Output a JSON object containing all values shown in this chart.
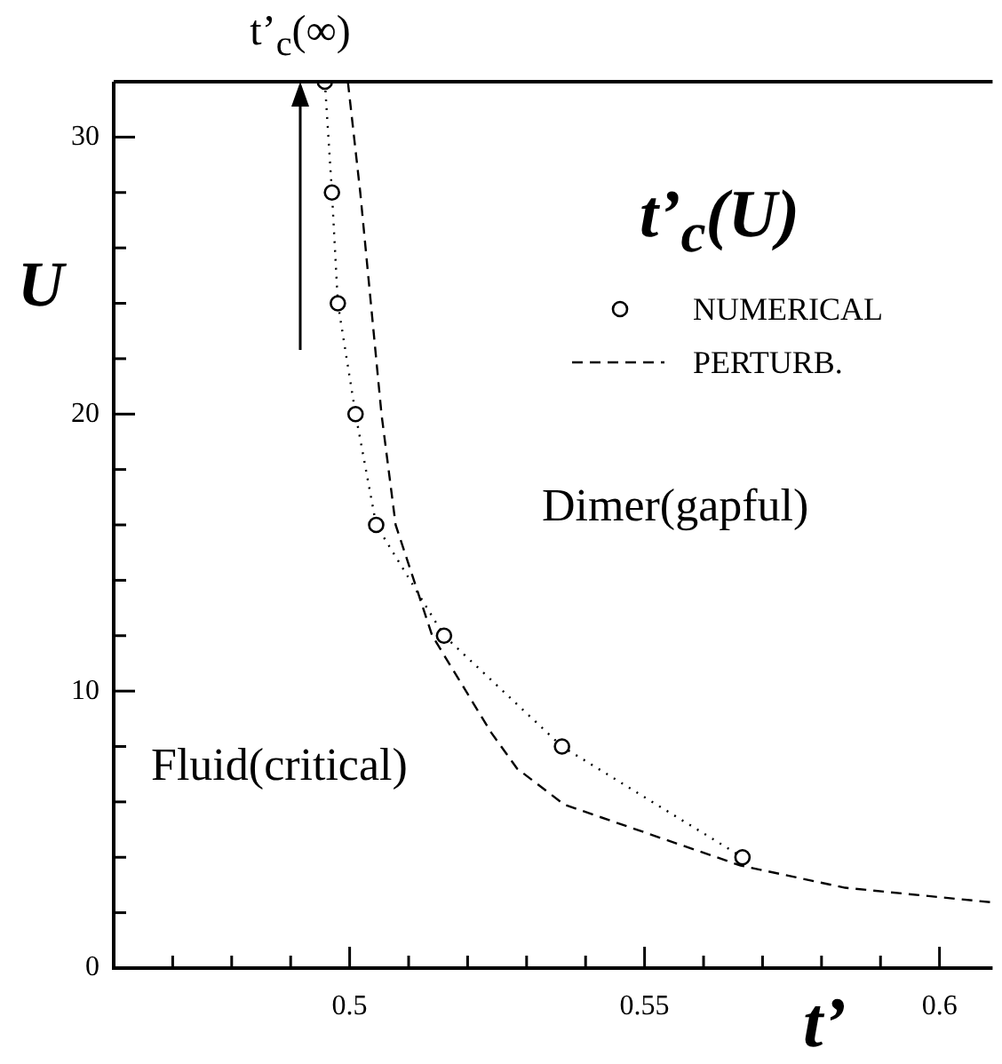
{
  "chart_data": {
    "type": "line",
    "title": "t’$_{c}$(U)",
    "xlabel": "t’",
    "ylabel": "U",
    "legend": "top right",
    "grid": false,
    "annotations": [
      "t’$_{c}$(∞)",
      "Dimer(gapful)",
      "Fluid(critical)"
    ],
    "xlim": [
      0.46,
      0.609
    ],
    "ylim": [
      0,
      32
    ],
    "xticks": [
      {
        "value": 0.47,
        "label": null
      },
      {
        "value": 0.48,
        "label": null
      },
      {
        "value": 0.49,
        "label": null
      },
      0.5,
      {
        "value": 0.51,
        "label": null
      },
      {
        "value": 0.52,
        "label": null
      },
      {
        "value": 0.53,
        "label": null
      },
      {
        "value": 0.54,
        "label": null
      },
      0.55,
      {
        "value": 0.56,
        "label": null
      },
      {
        "value": 0.57,
        "label": null
      },
      {
        "value": 0.58,
        "label": null
      },
      {
        "value": 0.59,
        "label": null
      },
      0.6
    ],
    "yticks": [
      0,
      {
        "value": 2,
        "label": null
      },
      {
        "value": 4,
        "label": null
      },
      {
        "value": 6,
        "label": null
      },
      {
        "value": 8,
        "label": null
      },
      10,
      {
        "value": 12,
        "label": null
      },
      {
        "value": 14,
        "label": null
      },
      {
        "value": 16,
        "label": null
      },
      {
        "value": 18,
        "label": null
      },
      20,
      {
        "value": 22,
        "label": null
      },
      {
        "value": 24,
        "label": null
      },
      {
        "value": 26,
        "label": null
      },
      {
        "value": 28,
        "label": null
      },
      30
    ],
    "series": [
      {
        "name": "NUMERICAL",
        "color": "#000000",
        "marker": "circle",
        "line_style": "dotted",
        "x": [
          0.4958,
          0.497,
          0.498,
          0.501,
          0.5045,
          0.516,
          0.536,
          0.5666
        ],
        "values": [
          32,
          28,
          24,
          20,
          16,
          12,
          8,
          4
        ]
      },
      {
        "name": "PERTURB.",
        "color": "#000000",
        "marker": "none",
        "line_style": "dashed",
        "x": [
          0.4997,
          0.5018,
          0.5036,
          0.5054,
          0.5078,
          0.514,
          0.524,
          0.5284,
          0.5364,
          0.5663,
          0.584,
          0.609
        ],
        "values": [
          32,
          28,
          24,
          20,
          16,
          12,
          8.5,
          7.2,
          5.9,
          3.7,
          2.9,
          2.37
        ]
      }
    ]
  }
}
